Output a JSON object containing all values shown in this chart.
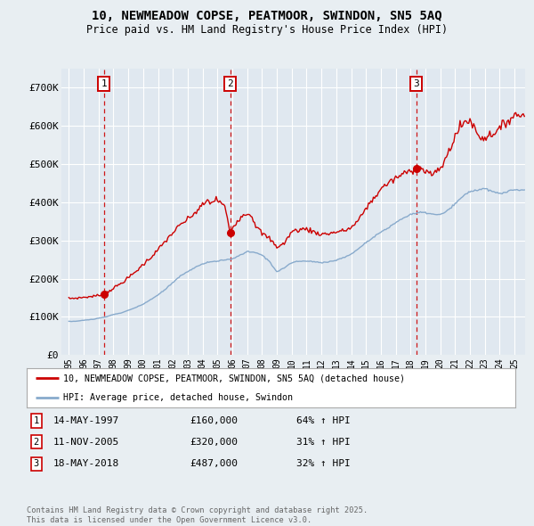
{
  "title_line1": "10, NEWMEADOW COPSE, PEATMOOR, SWINDON, SN5 5AQ",
  "title_line2": "Price paid vs. HM Land Registry's House Price Index (HPI)",
  "legend_line1": "10, NEWMEADOW COPSE, PEATMOOR, SWINDON, SN5 5AQ (detached house)",
  "legend_line2": "HPI: Average price, detached house, Swindon",
  "transactions": [
    {
      "num": 1,
      "date_num": 1997.37,
      "price": 160000,
      "label": "14-MAY-1997",
      "amount": "£160,000",
      "hpi_change": "64% ↑ HPI"
    },
    {
      "num": 2,
      "date_num": 2005.86,
      "price": 320000,
      "label": "11-NOV-2005",
      "amount": "£320,000",
      "hpi_change": "31% ↑ HPI"
    },
    {
      "num": 3,
      "date_num": 2018.38,
      "price": 487000,
      "label": "18-MAY-2018",
      "amount": "£487,000",
      "hpi_change": "32% ↑ HPI"
    }
  ],
  "red_line_color": "#cc0000",
  "blue_line_color": "#88aacc",
  "background_color": "#e8eef2",
  "plot_background_color": "#e0e8f0",
  "grid_color": "#ffffff",
  "ylim": [
    0,
    750000
  ],
  "yticks": [
    0,
    100000,
    200000,
    300000,
    400000,
    500000,
    600000,
    700000
  ],
  "ytick_labels": [
    "£0",
    "£100K",
    "£200K",
    "£300K",
    "£400K",
    "£500K",
    "£600K",
    "£700K"
  ],
  "footer_text": "Contains HM Land Registry data © Crown copyright and database right 2025.\nThis data is licensed under the Open Government Licence v3.0.",
  "xmin": 1994.5,
  "xmax": 2025.7,
  "hpi_points": [
    [
      1995.0,
      88000
    ],
    [
      1995.5,
      88500
    ],
    [
      1996.0,
      91000
    ],
    [
      1996.5,
      93000
    ],
    [
      1997.0,
      96000
    ],
    [
      1997.5,
      100000
    ],
    [
      1998.0,
      106000
    ],
    [
      1998.5,
      110000
    ],
    [
      1999.0,
      117000
    ],
    [
      1999.5,
      124000
    ],
    [
      2000.0,
      133000
    ],
    [
      2000.5,
      145000
    ],
    [
      2001.0,
      157000
    ],
    [
      2001.5,
      172000
    ],
    [
      2002.0,
      190000
    ],
    [
      2002.5,
      207000
    ],
    [
      2003.0,
      218000
    ],
    [
      2003.5,
      230000
    ],
    [
      2004.0,
      238000
    ],
    [
      2004.5,
      244000
    ],
    [
      2005.0,
      246000
    ],
    [
      2005.5,
      248000
    ],
    [
      2006.0,
      252000
    ],
    [
      2006.5,
      260000
    ],
    [
      2007.0,
      271000
    ],
    [
      2007.5,
      268000
    ],
    [
      2008.0,
      262000
    ],
    [
      2008.5,
      245000
    ],
    [
      2009.0,
      218000
    ],
    [
      2009.5,
      228000
    ],
    [
      2010.0,
      242000
    ],
    [
      2010.5,
      245000
    ],
    [
      2011.0,
      246000
    ],
    [
      2011.5,
      244000
    ],
    [
      2012.0,
      242000
    ],
    [
      2012.5,
      244000
    ],
    [
      2013.0,
      248000
    ],
    [
      2013.5,
      255000
    ],
    [
      2014.0,
      264000
    ],
    [
      2014.5,
      278000
    ],
    [
      2015.0,
      295000
    ],
    [
      2015.5,
      308000
    ],
    [
      2016.0,
      322000
    ],
    [
      2016.5,
      332000
    ],
    [
      2017.0,
      347000
    ],
    [
      2017.5,
      358000
    ],
    [
      2018.0,
      368000
    ],
    [
      2018.5,
      372000
    ],
    [
      2019.0,
      373000
    ],
    [
      2019.5,
      368000
    ],
    [
      2020.0,
      367000
    ],
    [
      2020.5,
      378000
    ],
    [
      2021.0,
      395000
    ],
    [
      2021.5,
      415000
    ],
    [
      2022.0,
      428000
    ],
    [
      2022.5,
      432000
    ],
    [
      2023.0,
      435000
    ],
    [
      2023.5,
      428000
    ],
    [
      2024.0,
      422000
    ],
    [
      2024.5,
      428000
    ],
    [
      2025.0,
      432000
    ]
  ],
  "red_points": [
    [
      1995.0,
      148000
    ],
    [
      1995.5,
      149000
    ],
    [
      1996.0,
      151000
    ],
    [
      1996.5,
      153000
    ],
    [
      1997.0,
      156000
    ],
    [
      1997.37,
      160000
    ],
    [
      1997.5,
      162000
    ],
    [
      1998.0,
      175000
    ],
    [
      1998.5,
      187000
    ],
    [
      1999.0,
      202000
    ],
    [
      1999.5,
      218000
    ],
    [
      2000.0,
      237000
    ],
    [
      2000.5,
      255000
    ],
    [
      2001.0,
      275000
    ],
    [
      2001.5,
      298000
    ],
    [
      2002.0,
      320000
    ],
    [
      2002.5,
      340000
    ],
    [
      2003.0,
      355000
    ],
    [
      2003.5,
      372000
    ],
    [
      2004.0,
      392000
    ],
    [
      2004.3,
      403000
    ],
    [
      2004.6,
      398000
    ],
    [
      2004.9,
      408000
    ],
    [
      2005.2,
      400000
    ],
    [
      2005.5,
      388000
    ],
    [
      2005.86,
      320000
    ],
    [
      2006.0,
      332000
    ],
    [
      2006.3,
      350000
    ],
    [
      2006.6,
      362000
    ],
    [
      2007.0,
      372000
    ],
    [
      2007.3,
      365000
    ],
    [
      2007.6,
      338000
    ],
    [
      2008.0,
      318000
    ],
    [
      2008.5,
      305000
    ],
    [
      2009.0,
      283000
    ],
    [
      2009.5,
      292000
    ],
    [
      2010.0,
      323000
    ],
    [
      2010.5,
      328000
    ],
    [
      2011.0,
      330000
    ],
    [
      2011.5,
      322000
    ],
    [
      2012.0,
      316000
    ],
    [
      2012.5,
      318000
    ],
    [
      2013.0,
      322000
    ],
    [
      2013.5,
      325000
    ],
    [
      2014.0,
      333000
    ],
    [
      2014.5,
      352000
    ],
    [
      2015.0,
      385000
    ],
    [
      2015.5,
      408000
    ],
    [
      2016.0,
      435000
    ],
    [
      2016.5,
      450000
    ],
    [
      2017.0,
      462000
    ],
    [
      2017.5,
      474000
    ],
    [
      2018.0,
      482000
    ],
    [
      2018.38,
      487000
    ],
    [
      2018.5,
      492000
    ],
    [
      2019.0,
      482000
    ],
    [
      2019.3,
      475000
    ],
    [
      2019.6,
      472000
    ],
    [
      2020.0,
      488000
    ],
    [
      2020.3,
      508000
    ],
    [
      2020.6,
      535000
    ],
    [
      2021.0,
      572000
    ],
    [
      2021.3,
      595000
    ],
    [
      2021.6,
      608000
    ],
    [
      2022.0,
      615000
    ],
    [
      2022.3,
      595000
    ],
    [
      2022.6,
      572000
    ],
    [
      2023.0,
      568000
    ],
    [
      2023.3,
      575000
    ],
    [
      2023.6,
      582000
    ],
    [
      2024.0,
      590000
    ],
    [
      2024.3,
      605000
    ],
    [
      2024.6,
      615000
    ],
    [
      2025.0,
      628000
    ]
  ]
}
